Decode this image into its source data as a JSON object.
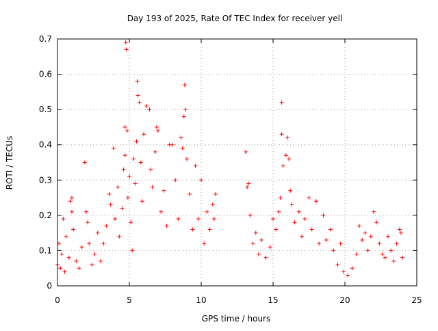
{
  "chart_data": {
    "type": "scatter",
    "title": "Day 193 of 2025, Rate Of TEC Index for receiver yell",
    "xlabel": "GPS time / hours",
    "ylabel": "ROTI / TECUs",
    "xlim": [
      0,
      25
    ],
    "ylim": [
      0,
      0.7
    ],
    "xticks": [
      0,
      5,
      10,
      15,
      20,
      25
    ],
    "yticks": [
      0,
      0.1,
      0.2,
      0.3,
      0.4,
      0.5,
      0.6,
      0.7
    ],
    "xtick_labels": [
      "0",
      "5",
      "10",
      "15",
      "20",
      "25"
    ],
    "ytick_labels": [
      "0",
      "0.1",
      "0.2",
      "0.3",
      "0.4",
      "0.5",
      "0.6",
      "0.7"
    ],
    "grid": true,
    "marker": "+",
    "color": "#ff0000",
    "series": [
      {
        "name": "ROTI",
        "points": [
          [
            0.0,
            0.06
          ],
          [
            0.1,
            0.12
          ],
          [
            0.2,
            0.05
          ],
          [
            0.3,
            0.09
          ],
          [
            0.4,
            0.19
          ],
          [
            0.5,
            0.04
          ],
          [
            0.6,
            0.14
          ],
          [
            0.8,
            0.08
          ],
          [
            0.9,
            0.24
          ],
          [
            1.0,
            0.25
          ],
          [
            1.0,
            0.21
          ],
          [
            1.1,
            0.16
          ],
          [
            1.3,
            0.07
          ],
          [
            1.5,
            0.05
          ],
          [
            1.7,
            0.11
          ],
          [
            1.9,
            0.35
          ],
          [
            2.0,
            0.21
          ],
          [
            2.1,
            0.18
          ],
          [
            2.2,
            0.12
          ],
          [
            2.4,
            0.06
          ],
          [
            2.6,
            0.09
          ],
          [
            2.8,
            0.15
          ],
          [
            3.0,
            0.07
          ],
          [
            3.2,
            0.12
          ],
          [
            3.4,
            0.17
          ],
          [
            3.6,
            0.26
          ],
          [
            3.7,
            0.23
          ],
          [
            3.9,
            0.39
          ],
          [
            4.0,
            0.19
          ],
          [
            4.2,
            0.28
          ],
          [
            4.3,
            0.14
          ],
          [
            4.5,
            0.22
          ],
          [
            4.6,
            0.33
          ],
          [
            4.7,
            0.45
          ],
          [
            4.7,
            0.37
          ],
          [
            4.75,
            0.69
          ],
          [
            4.8,
            0.67
          ],
          [
            4.85,
            0.44
          ],
          [
            4.9,
            0.25
          ],
          [
            5.0,
            0.31
          ],
          [
            5.1,
            0.18
          ],
          [
            5.2,
            0.1
          ],
          [
            5.3,
            0.36
          ],
          [
            5.4,
            0.29
          ],
          [
            5.5,
            0.41
          ],
          [
            5.55,
            0.58
          ],
          [
            5.6,
            0.54
          ],
          [
            5.7,
            0.52
          ],
          [
            5.8,
            0.35
          ],
          [
            5.9,
            0.24
          ],
          [
            6.0,
            0.43
          ],
          [
            6.2,
            0.51
          ],
          [
            6.4,
            0.5
          ],
          [
            6.5,
            0.33
          ],
          [
            6.6,
            0.28
          ],
          [
            6.8,
            0.38
          ],
          [
            6.9,
            0.45
          ],
          [
            7.0,
            0.44
          ],
          [
            7.2,
            0.21
          ],
          [
            7.4,
            0.27
          ],
          [
            7.6,
            0.17
          ],
          [
            7.8,
            0.4
          ],
          [
            8.0,
            0.4
          ],
          [
            8.2,
            0.3
          ],
          [
            8.4,
            0.19
          ],
          [
            8.6,
            0.42
          ],
          [
            8.7,
            0.39
          ],
          [
            8.8,
            0.48
          ],
          [
            8.85,
            0.57
          ],
          [
            8.9,
            0.5
          ],
          [
            9.0,
            0.36
          ],
          [
            9.2,
            0.26
          ],
          [
            9.4,
            0.16
          ],
          [
            9.6,
            0.34
          ],
          [
            9.8,
            0.19
          ],
          [
            10.0,
            0.3
          ],
          [
            10.2,
            0.12
          ],
          [
            10.4,
            0.21
          ],
          [
            10.6,
            0.16
          ],
          [
            10.8,
            0.23
          ],
          [
            10.9,
            0.19
          ],
          [
            11.0,
            0.26
          ],
          [
            13.1,
            0.38
          ],
          [
            13.2,
            0.28
          ],
          [
            13.3,
            0.29
          ],
          [
            13.4,
            0.2
          ],
          [
            13.6,
            0.12
          ],
          [
            13.8,
            0.15
          ],
          [
            14.0,
            0.09
          ],
          [
            14.2,
            0.13
          ],
          [
            14.5,
            0.08
          ],
          [
            14.8,
            0.11
          ],
          [
            15.0,
            0.19
          ],
          [
            15.2,
            0.16
          ],
          [
            15.4,
            0.21
          ],
          [
            15.5,
            0.25
          ],
          [
            15.6,
            0.52
          ],
          [
            15.6,
            0.43
          ],
          [
            15.7,
            0.34
          ],
          [
            15.9,
            0.37
          ],
          [
            16.0,
            0.42
          ],
          [
            16.1,
            0.36
          ],
          [
            16.2,
            0.27
          ],
          [
            16.3,
            0.23
          ],
          [
            16.5,
            0.18
          ],
          [
            16.8,
            0.21
          ],
          [
            17.0,
            0.14
          ],
          [
            17.2,
            0.19
          ],
          [
            17.5,
            0.25
          ],
          [
            17.7,
            0.16
          ],
          [
            18.0,
            0.24
          ],
          [
            18.2,
            0.12
          ],
          [
            18.5,
            0.2
          ],
          [
            18.7,
            0.13
          ],
          [
            19.0,
            0.16
          ],
          [
            19.2,
            0.1
          ],
          [
            19.5,
            0.06
          ],
          [
            19.7,
            0.12
          ],
          [
            19.9,
            0.04
          ],
          [
            20.2,
            0.03
          ],
          [
            20.5,
            0.05
          ],
          [
            20.8,
            0.09
          ],
          [
            21.0,
            0.17
          ],
          [
            21.2,
            0.13
          ],
          [
            21.4,
            0.15
          ],
          [
            21.6,
            0.1
          ],
          [
            21.8,
            0.14
          ],
          [
            22.0,
            0.21
          ],
          [
            22.2,
            0.18
          ],
          [
            22.4,
            0.12
          ],
          [
            22.6,
            0.09
          ],
          [
            22.8,
            0.08
          ],
          [
            23.0,
            0.14
          ],
          [
            23.2,
            0.1
          ],
          [
            23.4,
            0.07
          ],
          [
            23.6,
            0.12
          ],
          [
            23.8,
            0.16
          ],
          [
            23.9,
            0.15
          ],
          [
            24.0,
            0.08
          ]
        ]
      }
    ]
  }
}
